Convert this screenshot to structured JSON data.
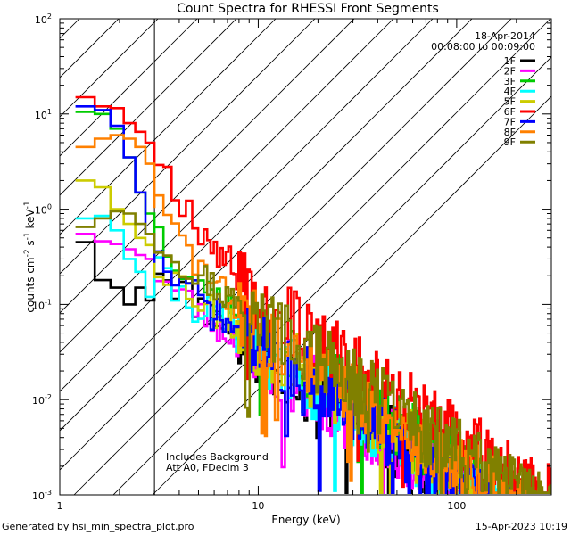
{
  "chart_data": {
    "type": "line",
    "title": "Count Spectra for RHESSI Front Segments",
    "xlabel": "Energy (keV)",
    "ylabel": {
      "base": "counts cm",
      "exp1": "-2",
      "mid1": " s",
      "exp2": "-1",
      "mid2": " keV",
      "exp3": "-1"
    },
    "xscale": "log",
    "yscale": "log",
    "xlim": [
      1,
      300
    ],
    "ylim": [
      0.001,
      100
    ],
    "x_ticks": [
      {
        "value": 1,
        "label": "1"
      },
      {
        "value": 10,
        "label": "10"
      },
      {
        "value": 100,
        "label": "100"
      }
    ],
    "y_ticks": [
      {
        "value": 0.001,
        "base": "10",
        "exp": "-3"
      },
      {
        "value": 0.01,
        "base": "10",
        "exp": "-2"
      },
      {
        "value": 0.1,
        "base": "10",
        "exp": "-1"
      },
      {
        "value": 1,
        "base": "10",
        "exp": "0"
      },
      {
        "value": 10,
        "base": "10",
        "exp": "1"
      },
      {
        "value": 100,
        "base": "10",
        "exp": "2"
      }
    ],
    "shaded_region": {
      "x_from": 1,
      "x_to": 3,
      "pattern": "diagonal hatch"
    },
    "date": "18-Apr-2014",
    "time_range": "00:08:00 to 00:09:00",
    "annotation_lines": [
      "Includes Background",
      "Att A0, FDecim 3"
    ],
    "footer_left": "Generated by hsi_min_spectra_plot.pro",
    "footer_right": "15-Apr-2023 10:19",
    "series": [
      {
        "name": "1F",
        "color": "#000000",
        "low": [
          0.45,
          0.18,
          0.15,
          0.1,
          0.15,
          0.11
        ],
        "mid": 0.12,
        "k2": 0.032,
        "pivot": 0.06,
        "slope": 3.0,
        "seed": 11
      },
      {
        "name": "2F",
        "color": "#ff00ff",
        "low": [
          0.55,
          0.46,
          0.43,
          0.38,
          0.33,
          0.3
        ],
        "mid": 0.06,
        "k2": 0.03,
        "pivot": 0.045,
        "slope": 3.0,
        "seed": 23
      },
      {
        "name": "3F",
        "color": "#00cc00",
        "low": [
          10.5,
          10.0,
          7.0,
          3.5,
          1.5,
          0.9
        ],
        "mid": 0.4,
        "k2": 0.05,
        "pivot": 0.035,
        "slope": 3.0,
        "seed": 37
      },
      {
        "name": "4F",
        "color": "#00ffff",
        "low": [
          0.8,
          0.85,
          0.6,
          0.3,
          0.22,
          0.12
        ],
        "mid": 0.03,
        "k2": 0.035,
        "pivot": 0.032,
        "slope": 3.0,
        "seed": 41
      },
      {
        "name": "5F",
        "color": "#cccc00",
        "low": [
          2.0,
          1.7,
          1.0,
          0.7,
          0.5,
          0.42
        ],
        "mid": 0.1,
        "k2": 0.04,
        "pivot": 0.035,
        "slope": 3.0,
        "seed": 53
      },
      {
        "name": "6F",
        "color": "#ff0000",
        "low": [
          15.0,
          12.0,
          11.5,
          8.0,
          6.5,
          5.0
        ],
        "mid": 3.5,
        "k2": 0.1,
        "pivot": 0.012,
        "slope": 3.0,
        "seed": 67
      },
      {
        "name": "7F",
        "color": "#0000ff",
        "low": [
          12.0,
          11.0,
          7.5,
          3.5,
          1.5,
          0.55
        ],
        "mid": 0.15,
        "k2": 0.035,
        "pivot": 0.045,
        "slope": 3.0,
        "seed": 71
      },
      {
        "name": "8F",
        "color": "#ff8000",
        "low": [
          4.5,
          5.5,
          6.0,
          5.5,
          4.5,
          3.0
        ],
        "mid": 1.0,
        "k2": 0.05,
        "pivot": 0.03,
        "slope": 3.0,
        "seed": 83
      },
      {
        "name": "9F",
        "color": "#808000",
        "low": [
          0.65,
          0.8,
          0.95,
          0.9,
          0.7,
          0.55
        ],
        "mid": 0.2,
        "k2": 0.07,
        "pivot": 0.2,
        "slope": 3.5,
        "seed": 97
      }
    ]
  }
}
